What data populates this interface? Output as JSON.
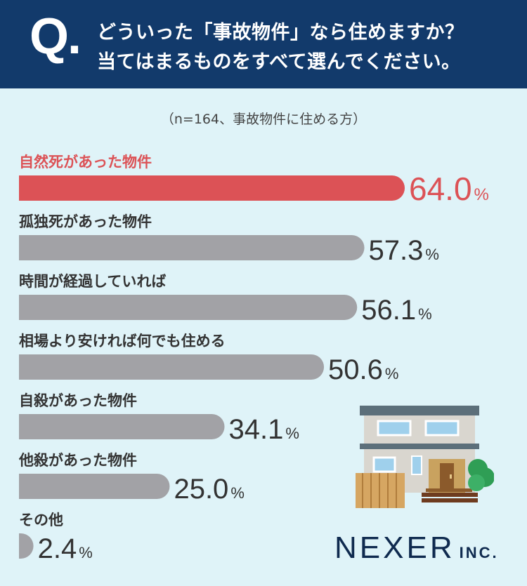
{
  "header": {
    "q_mark": "Q",
    "question_line1": "どういった「事故物件」なら住めますか？",
    "question_line2": "当てはまるものをすべて選んでください。"
  },
  "note": "（n=164、事故物件に住める方）",
  "chart_data": {
    "type": "bar",
    "orientation": "horizontal",
    "categories": [
      "自然死があった物件",
      "孤独死があった物件",
      "時間が経過していれば",
      "相場より安ければ何でも住める",
      "自殺があった物件",
      "他殺があった物件",
      "その他"
    ],
    "values": [
      64.0,
      57.3,
      56.1,
      50.6,
      34.1,
      25.0,
      2.4
    ],
    "value_labels": [
      "64.0",
      "57.3",
      "56.1",
      "50.6",
      "34.1",
      "25.0",
      "2.4"
    ],
    "unit": "%",
    "highlight_index": 0,
    "colors": {
      "highlight": "#dc5256",
      "default": "#a2a2a6",
      "highlight_text": "#dc5256",
      "default_text": "#333333"
    }
  },
  "logo": {
    "main": "NEXER",
    "sub": "INC."
  },
  "illustration": {
    "icon": "house-icon"
  }
}
